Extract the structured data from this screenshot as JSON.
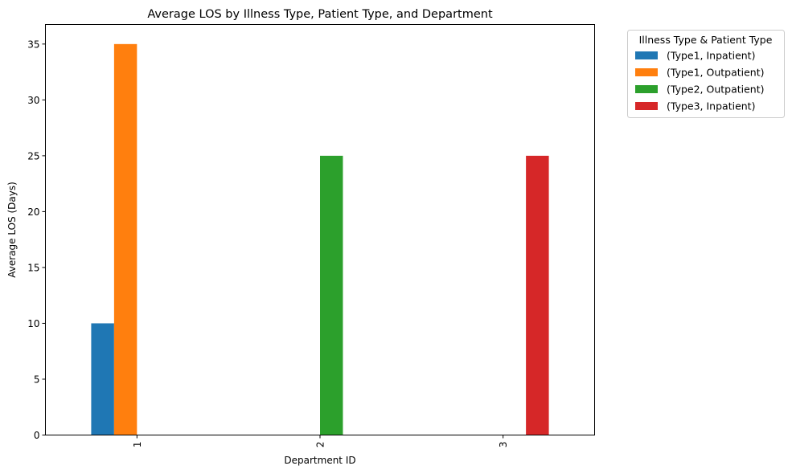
{
  "chart_data": {
    "type": "bar",
    "title": "Average LOS by Illness Type, Patient Type, and Department",
    "xlabel": "Department ID",
    "ylabel": "Average LOS (Days)",
    "categories": [
      "1",
      "2",
      "3"
    ],
    "ylim": [
      0,
      36.75
    ],
    "yticks": [
      0,
      5,
      10,
      15,
      20,
      25,
      30,
      35
    ],
    "grid": false,
    "legend": {
      "title": "Illness Type & Patient Type",
      "placement": "outside-top-right"
    },
    "series": [
      {
        "name": "(Type1, Inpatient)",
        "color": "#1f77b4",
        "values": [
          10,
          null,
          null
        ]
      },
      {
        "name": "(Type1, Outpatient)",
        "color": "#ff7f0e",
        "values": [
          35,
          null,
          null
        ]
      },
      {
        "name": "(Type2, Outpatient)",
        "color": "#2ca02c",
        "values": [
          null,
          25,
          null
        ]
      },
      {
        "name": "(Type3, Inpatient)",
        "color": "#d62728",
        "values": [
          null,
          null,
          25
        ]
      }
    ]
  }
}
